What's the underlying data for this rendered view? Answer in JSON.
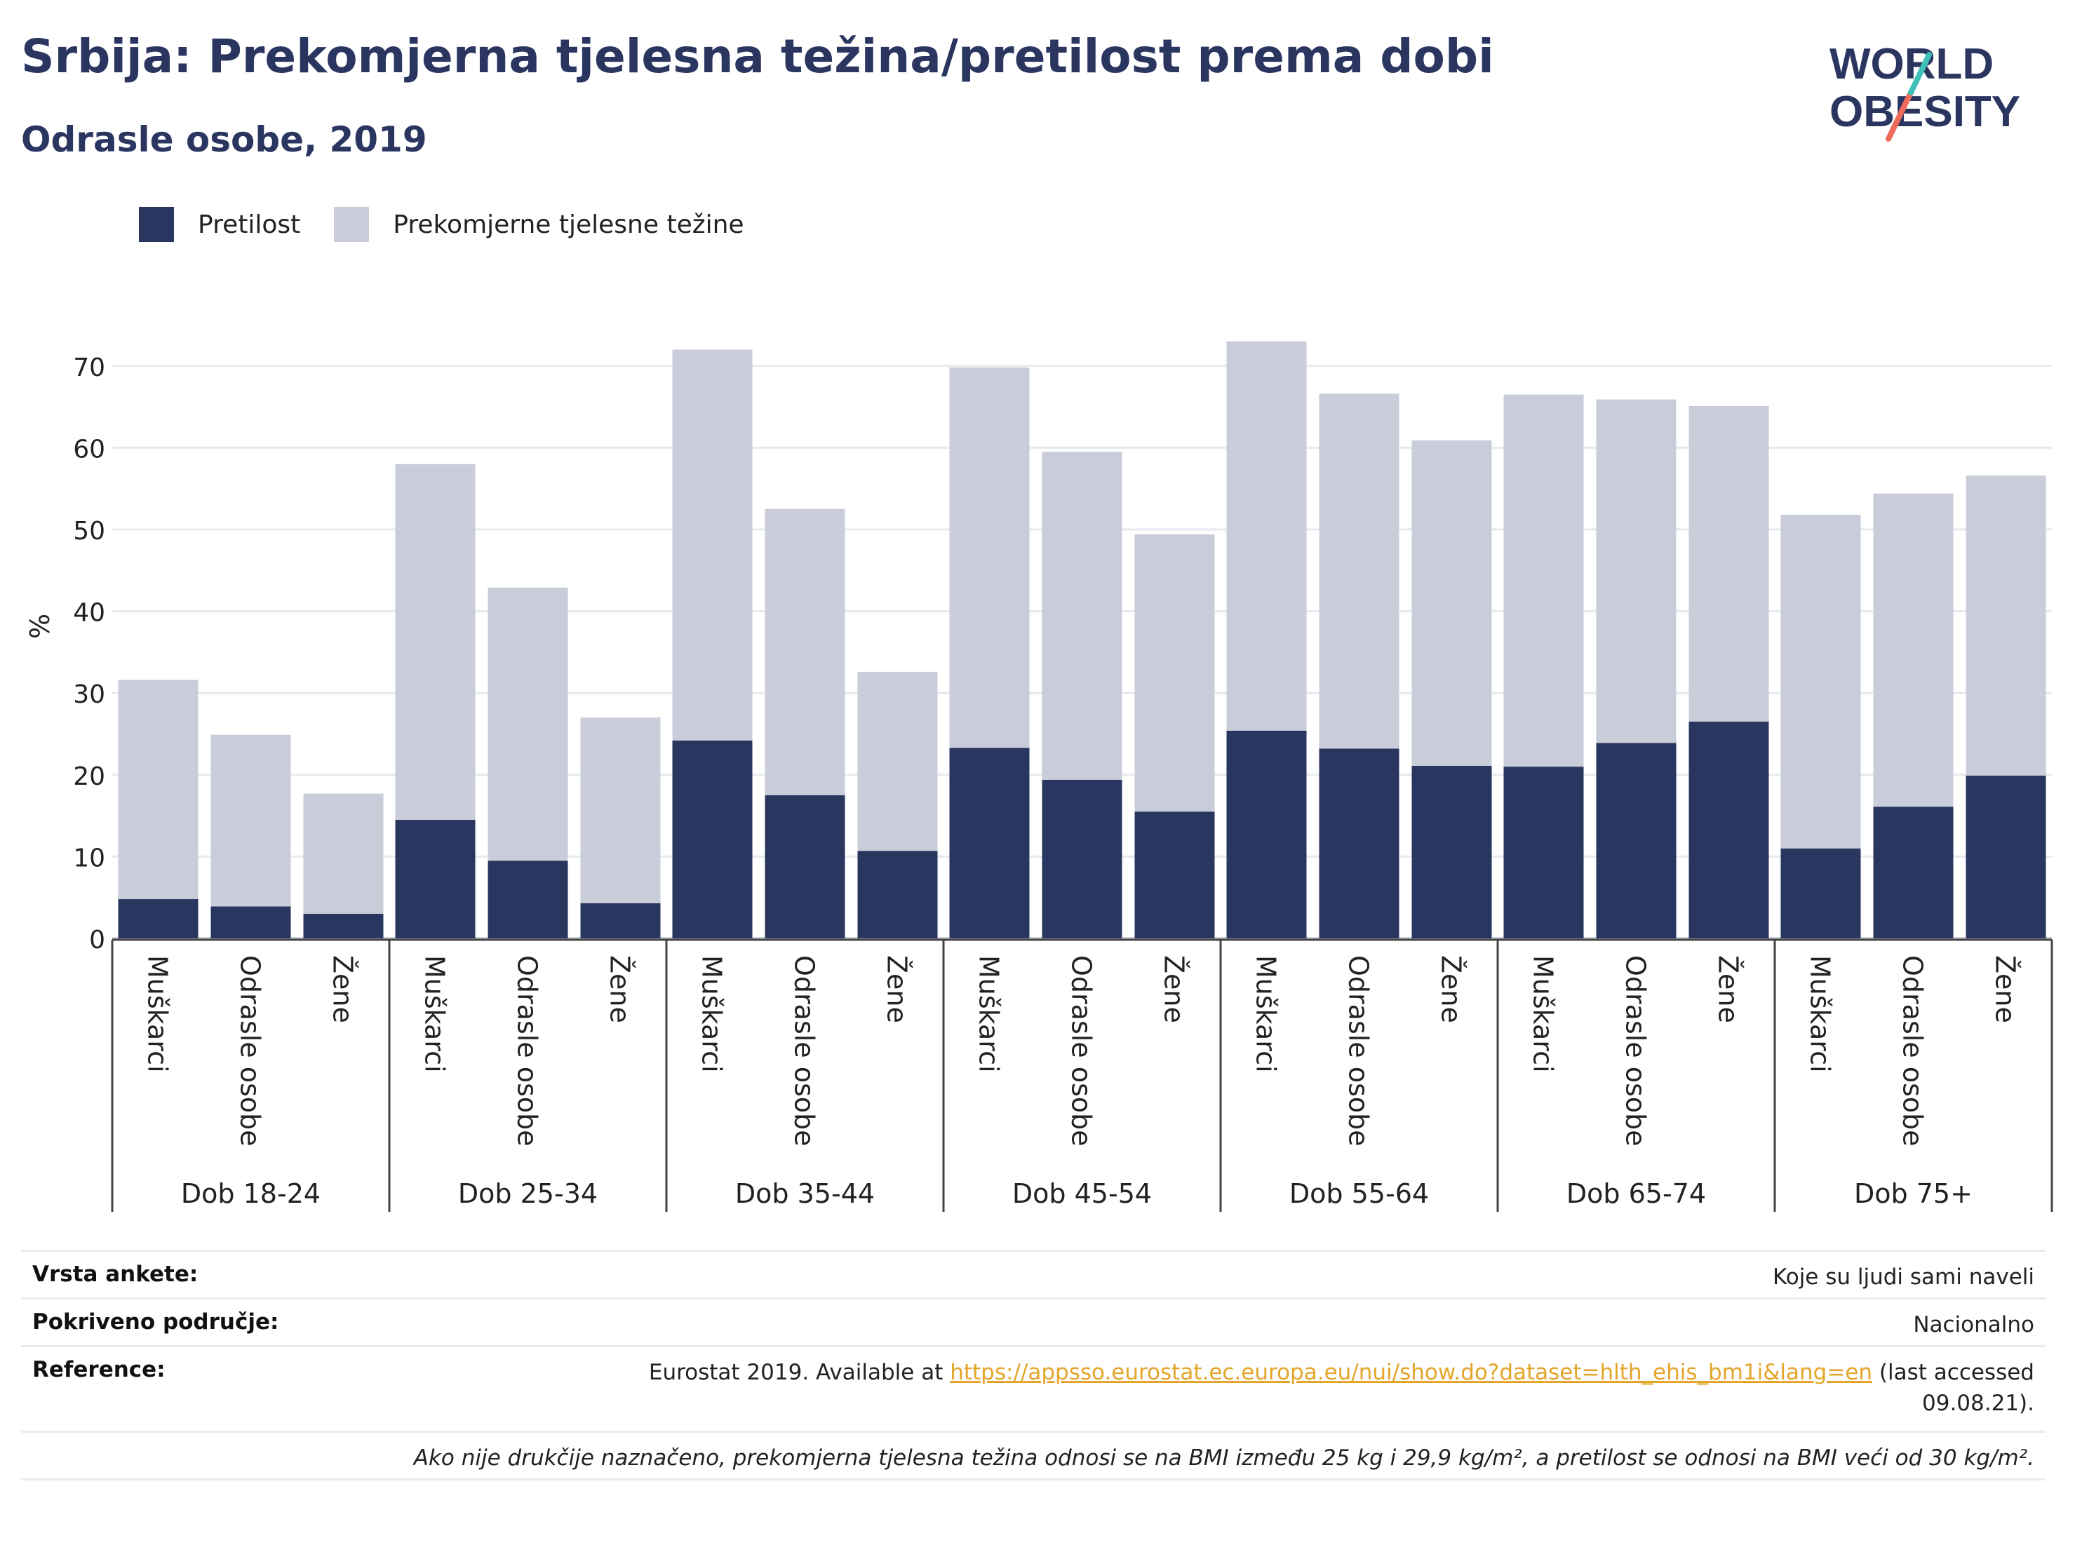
{
  "header": {
    "title": "Srbija: Prekomjerna tjelesna težina/pretilost prema dobi",
    "subtitle": "Odrasle osobe, 2019"
  },
  "logo": {
    "line1": "WORLD",
    "line2": "OBESITY"
  },
  "colors": {
    "obesity": "#29365f",
    "overweight": "#c9ccd9",
    "title": "#2a3560",
    "link": "#e3a52a"
  },
  "chart_data": {
    "type": "bar",
    "stacked": true,
    "ylabel": "%",
    "ylim": [
      0,
      75
    ],
    "yticks": [
      0,
      10,
      20,
      30,
      40,
      50,
      60,
      70
    ],
    "legend_position": "top-left",
    "grid": true,
    "groups": [
      "Dob 18-24",
      "Dob 25-34",
      "Dob 35-44",
      "Dob 45-54",
      "Dob 55-64",
      "Dob 65-74",
      "Dob 75+"
    ],
    "subcategories": [
      "Muškarci",
      "Odrasle osobe",
      "Žene"
    ],
    "series": [
      {
        "name": "Pretilost",
        "color": "#29365f",
        "values": [
          4.8,
          3.9,
          3.0,
          14.5,
          9.5,
          4.3,
          24.2,
          17.5,
          10.7,
          23.3,
          19.4,
          15.5,
          25.4,
          23.2,
          21.1,
          21.0,
          23.9,
          26.5,
          11.0,
          16.1,
          19.9
        ]
      },
      {
        "name": "Prekomjerne tjelesne težine",
        "color": "#c9ccd9",
        "values": [
          26.8,
          21.0,
          14.7,
          43.5,
          33.4,
          22.7,
          47.8,
          35.0,
          21.9,
          46.5,
          40.1,
          33.9,
          47.6,
          43.4,
          39.8,
          45.5,
          42.0,
          38.6,
          40.8,
          38.3,
          36.7
        ]
      }
    ]
  },
  "info": {
    "survey_label": "Vrsta ankete:",
    "survey_value": "Koje su ljudi sami naveli",
    "coverage_label": "Pokriveno područje:",
    "coverage_value": "Nacionalno",
    "reference_label": "Reference:",
    "reference_prefix": "Eurostat 2019. Available at ",
    "reference_link": "https://appsso.eurostat.ec.europa.eu/nui/show.do?dataset=hlth_ehis_bm1i&lang=en",
    "reference_suffix": " (last accessed",
    "reference_date": "09.08.21).",
    "note": "Ako nije drukčije naznačeno, prekomjerna tjelesna težina odnosi se na BMI između 25 kg i 29,9 kg/m², a pretilost se odnosi na BMI veći od 30 kg/m²."
  }
}
